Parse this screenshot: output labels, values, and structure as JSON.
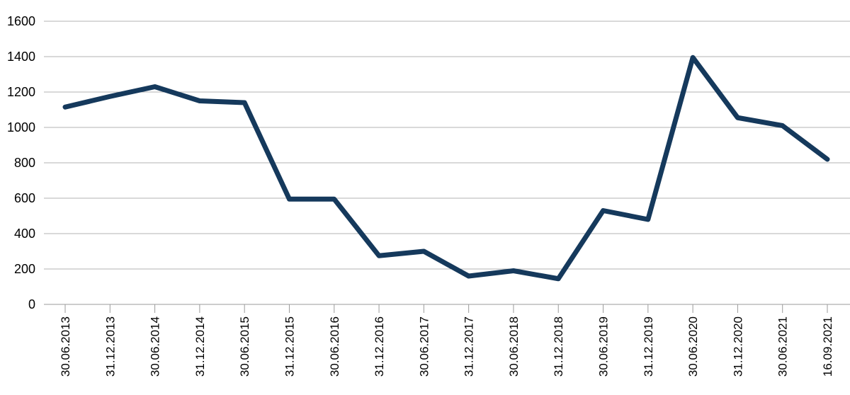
{
  "chart_data": {
    "type": "line",
    "title": "",
    "xlabel": "",
    "ylabel": "",
    "categories": [
      "30.06.2013",
      "31.12.2013",
      "30.06.2014",
      "31.12.2014",
      "30.06.2015",
      "31.12.2015",
      "30.06.2016",
      "31.12.2016",
      "30.06.2017",
      "31.12.2017",
      "30.06.2018",
      "31.12.2018",
      "30.06.2019",
      "31.12.2019",
      "30.06.2020",
      "31.12.2020",
      "30.06.2021",
      "16.09.2021"
    ],
    "series": [
      {
        "name": "series-1",
        "values": [
          1115,
          1175,
          1230,
          1150,
          1140,
          595,
          595,
          275,
          300,
          160,
          190,
          145,
          530,
          480,
          1395,
          1055,
          1010,
          820
        ]
      }
    ],
    "ylim": [
      0,
      1600
    ],
    "y_ticks": [
      0,
      200,
      400,
      600,
      800,
      1000,
      1200,
      1400,
      1600
    ],
    "grid": true,
    "legend": "none",
    "colors": {
      "line": "#15395c",
      "grid": "#b3b3b3",
      "axis": "#9b9b9b",
      "text": "#000000",
      "background": "#ffffff"
    }
  }
}
